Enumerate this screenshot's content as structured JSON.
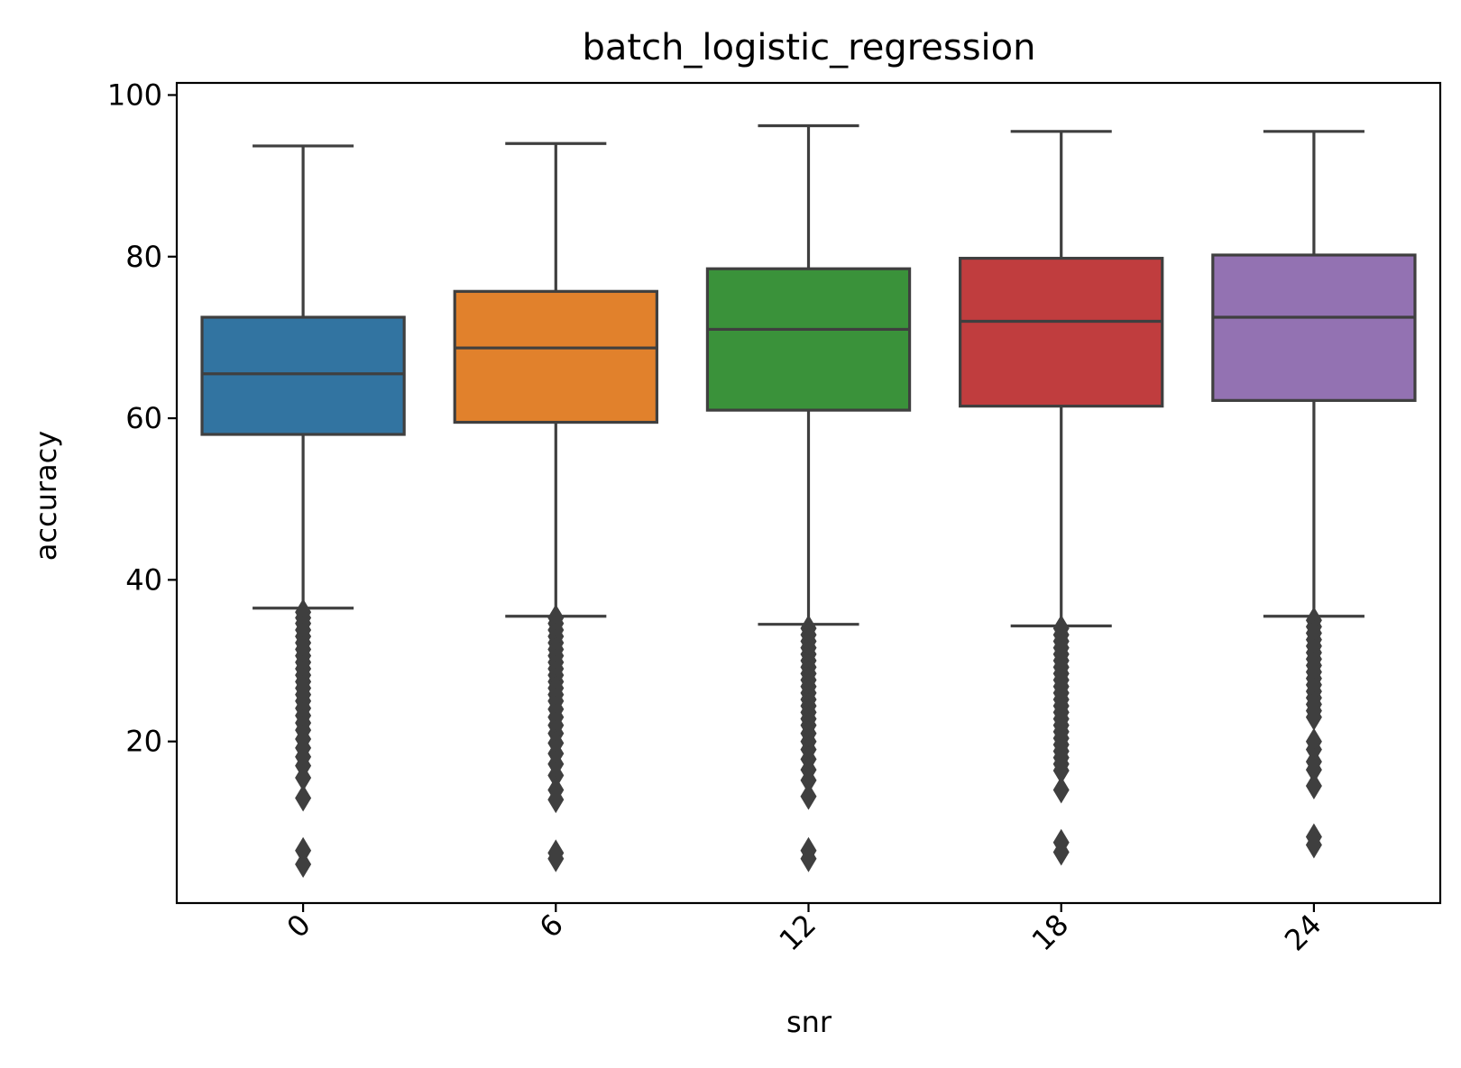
{
  "chart_data": {
    "type": "box",
    "title": "batch_logistic_regression",
    "xlabel": "snr",
    "ylabel": "accuracy",
    "categories": [
      "0",
      "6",
      "12",
      "18",
      "24"
    ],
    "colors": [
      "#3274a1",
      "#e1812c",
      "#3a923a",
      "#c03d3e",
      "#9372b2"
    ],
    "ylim": [
      0,
      101.5
    ],
    "yticks": [
      20,
      40,
      60,
      80,
      100
    ],
    "ytick_labels": [
      "20",
      "40",
      "60",
      "80",
      "100"
    ],
    "grid": false,
    "boxes": [
      {
        "category": "0",
        "whisker_low": 36.5,
        "q1": 58.0,
        "median": 65.5,
        "q3": 72.5,
        "whisker_high": 93.7,
        "outliers": [
          36.0,
          35.3,
          34.6,
          33.8,
          33.0,
          32.2,
          31.4,
          30.6,
          29.8,
          29.0,
          28.2,
          27.4,
          26.6,
          25.8,
          25.0,
          24.1,
          23.2,
          22.3,
          21.4,
          20.3,
          19.2,
          18.1,
          17.0,
          15.5,
          13.0,
          6.5,
          4.8
        ]
      },
      {
        "category": "6",
        "whisker_low": 35.5,
        "q1": 59.5,
        "median": 68.7,
        "q3": 75.7,
        "whisker_high": 94.0,
        "outliers": [
          35.3,
          34.6,
          33.8,
          33.0,
          32.2,
          31.4,
          30.6,
          29.8,
          29.0,
          28.2,
          27.4,
          26.6,
          25.8,
          25.0,
          24.0,
          23.0,
          22.0,
          21.0,
          19.8,
          18.5,
          17.2,
          15.8,
          14.0,
          12.8,
          6.2,
          5.5
        ]
      },
      {
        "category": "12",
        "whisker_low": 34.5,
        "q1": 61.0,
        "median": 71.0,
        "q3": 78.5,
        "whisker_high": 96.2,
        "outliers": [
          34.0,
          33.2,
          32.4,
          31.6,
          30.8,
          30.0,
          29.2,
          28.4,
          27.6,
          26.8,
          26.0,
          25.2,
          24.4,
          23.6,
          22.8,
          22.0,
          21.0,
          20.0,
          19.0,
          17.8,
          16.5,
          15.2,
          13.2,
          6.5,
          5.5
        ]
      },
      {
        "category": "18",
        "whisker_low": 34.3,
        "q1": 61.5,
        "median": 72.0,
        "q3": 79.8,
        "whisker_high": 95.5,
        "outliers": [
          34.0,
          33.2,
          32.4,
          31.6,
          30.8,
          30.0,
          29.2,
          28.4,
          27.6,
          26.8,
          26.0,
          25.2,
          24.4,
          23.6,
          22.8,
          22.0,
          21.2,
          20.4,
          19.6,
          18.8,
          18.0,
          17.2,
          16.4,
          14.0,
          7.5,
          6.3
        ]
      },
      {
        "category": "24",
        "whisker_low": 35.5,
        "q1": 62.2,
        "median": 72.5,
        "q3": 80.2,
        "whisker_high": 95.5,
        "outliers": [
          35.0,
          34.2,
          33.4,
          32.6,
          31.8,
          31.0,
          30.2,
          29.4,
          28.6,
          27.8,
          27.0,
          26.2,
          25.4,
          24.6,
          23.8,
          23.0,
          20.0,
          19.0,
          17.5,
          16.5,
          14.5,
          8.2,
          7.2
        ]
      }
    ]
  }
}
